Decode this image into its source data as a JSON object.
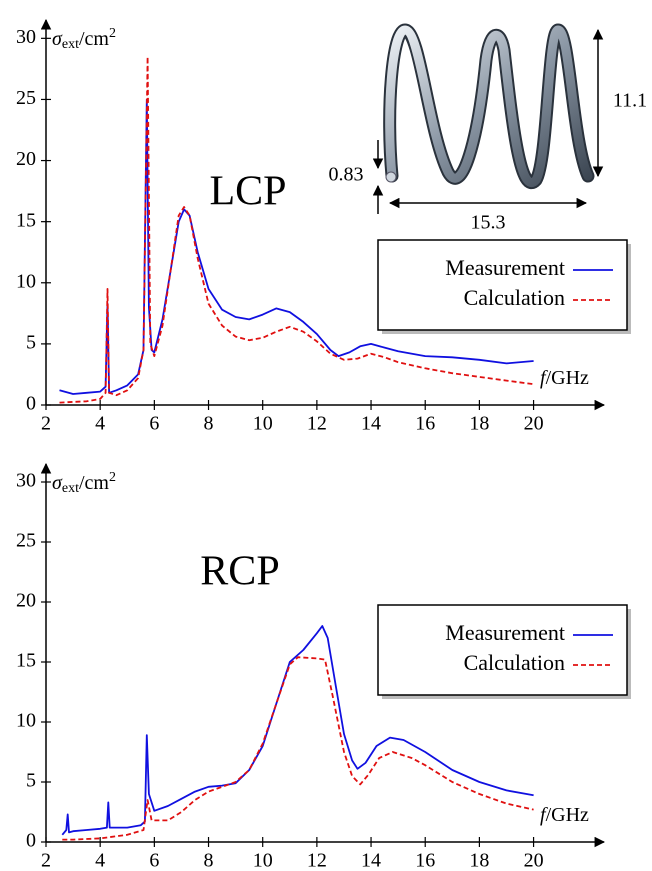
{
  "chart_data": [
    {
      "type": "line",
      "annotation": "LCP",
      "y_label": [
        "σ",
        "ext",
        "/cm",
        "2"
      ],
      "x_label": [
        "f",
        "/GHz"
      ],
      "dimension_labels": [
        "11.1",
        "0.83",
        "15.3"
      ],
      "xlim": [
        2,
        22.6
      ],
      "ylim": [
        0,
        31.5
      ],
      "xticks": [
        2,
        4,
        6,
        8,
        10,
        12,
        14,
        16,
        18,
        20
      ],
      "yticks": [
        0,
        5,
        10,
        15,
        20,
        25,
        30
      ],
      "legend": "right",
      "series": [
        {
          "name": "Measurement",
          "color": "#1010e0",
          "dash": "solid",
          "x": [
            2.5,
            3,
            3.5,
            4,
            4.2,
            4.27,
            4.33,
            4.6,
            5,
            5.4,
            5.6,
            5.72,
            5.8,
            5.9,
            6,
            6.3,
            6.6,
            6.9,
            7.1,
            7.3,
            7.6,
            8,
            8.5,
            9,
            9.5,
            10,
            10.5,
            11,
            11.5,
            12,
            12.5,
            12.8,
            13.2,
            13.6,
            14,
            14.5,
            15,
            16,
            17,
            18,
            19,
            20
          ],
          "values": [
            1.2,
            0.9,
            1.0,
            1.1,
            1.5,
            8.3,
            1.0,
            1.2,
            1.6,
            2.5,
            4.5,
            25,
            8,
            4.5,
            4.3,
            7,
            11,
            15,
            16,
            15.5,
            12.5,
            9.5,
            7.8,
            7.2,
            7,
            7.4,
            7.9,
            7.6,
            6.8,
            5.8,
            4.5,
            4.0,
            4.3,
            4.8,
            5.0,
            4.7,
            4.4,
            4.0,
            3.9,
            3.7,
            3.4,
            3.6
          ]
        },
        {
          "name": "Calculation",
          "color": "#e01010",
          "dash": "dashed",
          "x": [
            2.5,
            3,
            3.5,
            4,
            4.2,
            4.27,
            4.33,
            4.6,
            5,
            5.4,
            5.6,
            5.75,
            5.85,
            6,
            6.3,
            6.6,
            6.9,
            7.1,
            7.3,
            7.6,
            8,
            8.5,
            9,
            9.5,
            10,
            10.5,
            11,
            11.5,
            12,
            12.5,
            13,
            13.5,
            14,
            14.5,
            15,
            16,
            17,
            18,
            19,
            20
          ],
          "values": [
            0.2,
            0.25,
            0.3,
            0.5,
            1.0,
            9.5,
            1.0,
            0.8,
            1.2,
            2.2,
            4.5,
            28.5,
            5,
            4.0,
            6.5,
            11,
            15.5,
            16.2,
            15.5,
            12,
            8.3,
            6.5,
            5.6,
            5.3,
            5.5,
            6.0,
            6.4,
            6.0,
            5.2,
            4.2,
            3.7,
            3.8,
            4.2,
            3.9,
            3.5,
            3.0,
            2.6,
            2.3,
            2.0,
            1.7
          ]
        }
      ]
    },
    {
      "type": "line",
      "annotation": "RCP",
      "y_label": [
        "σ",
        "ext",
        "/cm",
        "2"
      ],
      "x_label": [
        "f",
        "/GHz"
      ],
      "xlim": [
        2,
        22.6
      ],
      "ylim": [
        0,
        31.5
      ],
      "xticks": [
        2,
        4,
        6,
        8,
        10,
        12,
        14,
        16,
        18,
        20
      ],
      "yticks": [
        0,
        5,
        10,
        15,
        20,
        25,
        30
      ],
      "legend": "right",
      "series": [
        {
          "name": "Measurement",
          "color": "#1010e0",
          "dash": "solid",
          "x": [
            2.6,
            2.75,
            2.8,
            2.85,
            3,
            3.5,
            4,
            4.25,
            4.3,
            4.35,
            4.6,
            5,
            5.5,
            5.65,
            5.72,
            5.8,
            6,
            6.5,
            7,
            7.5,
            8,
            8.5,
            9,
            9.5,
            10,
            10.5,
            11,
            11.5,
            12,
            12.2,
            12.4,
            12.7,
            13,
            13.3,
            13.5,
            13.8,
            14.2,
            14.7,
            15.2,
            16,
            17,
            18,
            19,
            20
          ],
          "values": [
            0.6,
            1.0,
            2.3,
            0.8,
            0.9,
            1.0,
            1.1,
            1.2,
            3.3,
            1.2,
            1.2,
            1.2,
            1.4,
            1.7,
            8.9,
            4.0,
            2.6,
            3.0,
            3.6,
            4.2,
            4.6,
            4.7,
            4.9,
            6,
            8,
            11.5,
            15,
            16,
            17.4,
            18,
            17,
            13,
            9,
            6.8,
            6.1,
            6.6,
            8,
            8.7,
            8.5,
            7.5,
            6,
            5,
            4.3,
            3.9
          ]
        },
        {
          "name": "Calculation",
          "color": "#e01010",
          "dash": "dashed",
          "x": [
            2.6,
            3,
            4,
            5,
            5.6,
            5.75,
            5.9,
            6.5,
            7,
            7.5,
            8,
            8.5,
            9,
            9.5,
            10,
            10.5,
            11,
            11.3,
            12,
            12.3,
            12.6,
            13,
            13.3,
            13.6,
            13.9,
            14.3,
            14.8,
            15.5,
            16,
            17,
            18,
            19,
            20
          ],
          "values": [
            0.2,
            0.2,
            0.3,
            0.6,
            1,
            3.5,
            1.8,
            1.8,
            2.5,
            3.5,
            4.2,
            4.6,
            5,
            6,
            8.2,
            11.5,
            14.8,
            15.4,
            15.3,
            15.2,
            12,
            7.5,
            5.5,
            4.8,
            5.6,
            7,
            7.5,
            7,
            6.4,
            5,
            4,
            3.2,
            2.7
          ]
        }
      ]
    }
  ]
}
